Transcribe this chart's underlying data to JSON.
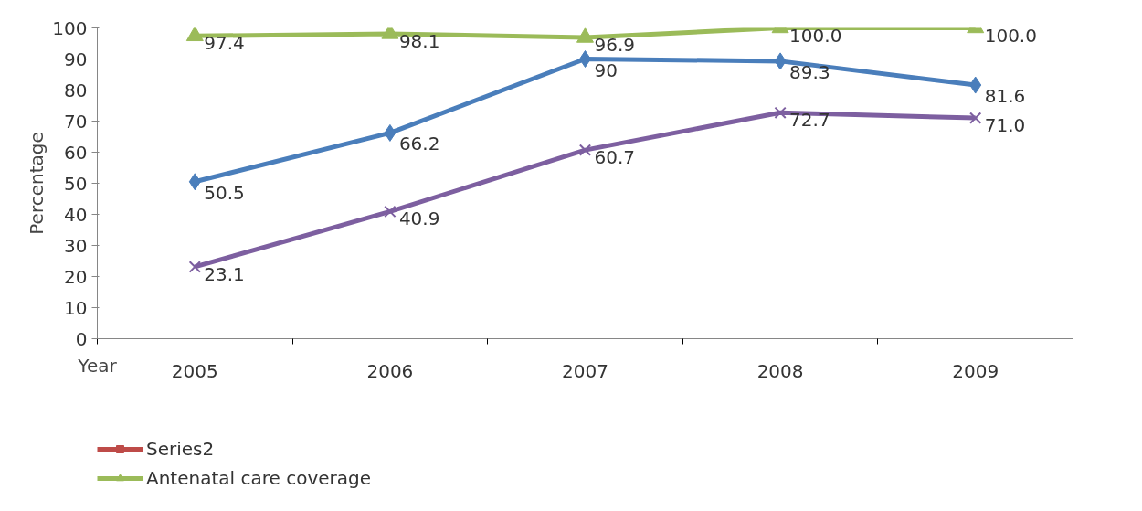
{
  "chart_data": {
    "type": "line",
    "xlabel": "Year",
    "ylabel": "Percentage",
    "categories": [
      "2005",
      "2006",
      "2007",
      "2008",
      "2009"
    ],
    "ylim": [
      0,
      100
    ],
    "yticks": [
      0,
      10,
      20,
      30,
      40,
      50,
      60,
      70,
      80,
      90,
      100
    ],
    "grid": false,
    "legend": "bottom",
    "series": [
      {
        "color": "#4a7ebb",
        "marker": "diamond",
        "values": [
          50.5,
          66.2,
          90,
          89.3,
          81.6
        ],
        "value_labels": [
          "50.5",
          "66.2",
          "90",
          "89.3",
          "81.6"
        ]
      },
      {
        "name": "Series2",
        "color": "#be4b48",
        "marker": "square",
        "values": [
          null,
          null,
          null,
          null,
          null
        ]
      },
      {
        "name": "Antenatal care coverage",
        "color": "#9bbb59",
        "marker": "triangle",
        "values": [
          97.4,
          98.1,
          96.9,
          100.0,
          100.0
        ],
        "value_labels": [
          "97.4",
          "98.1",
          "96.9",
          "100.0",
          "100.0"
        ]
      },
      {
        "color": "#7d5fa0",
        "marker": "cross",
        "values": [
          23.1,
          40.9,
          60.7,
          72.7,
          71.0
        ],
        "value_labels": [
          "23.1",
          "40.9",
          "60.7",
          "72.7",
          "71.0"
        ]
      }
    ]
  }
}
